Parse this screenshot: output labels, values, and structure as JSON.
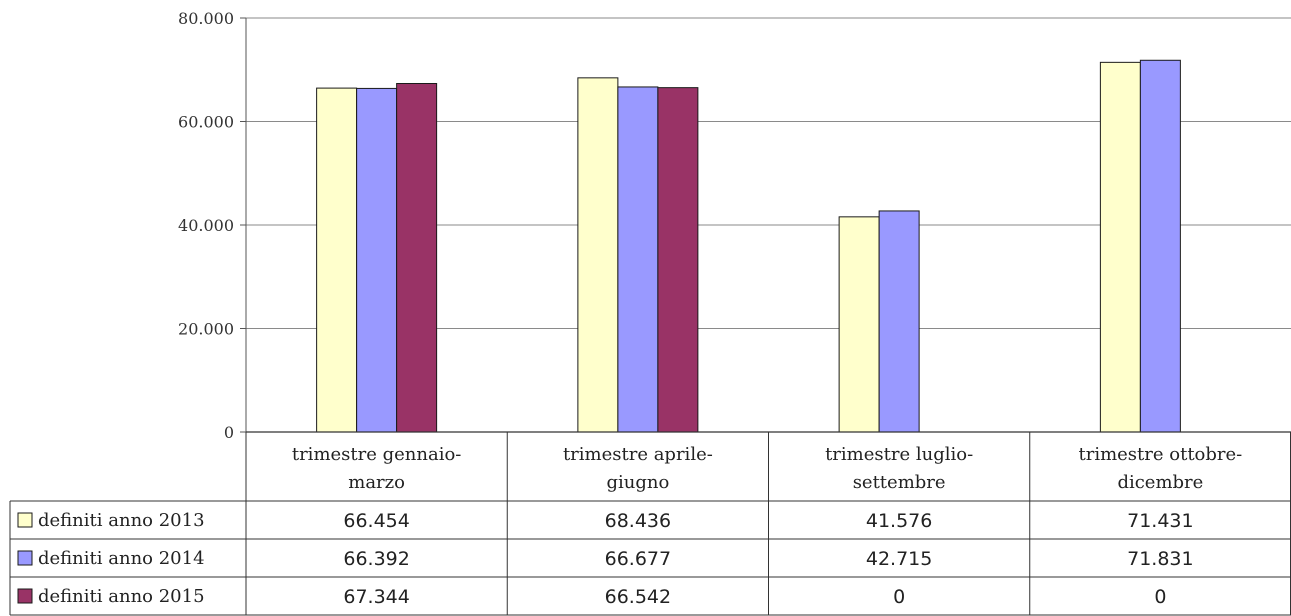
{
  "chart_data": {
    "type": "bar",
    "categories": [
      [
        "trimestre gennaio-",
        "marzo"
      ],
      [
        "trimestre aprile-",
        "giugno"
      ],
      [
        "trimestre luglio-",
        "settembre"
      ],
      [
        "trimestre ottobre-",
        "dicembre"
      ]
    ],
    "series": [
      {
        "name": "definiti anno 2013",
        "color": "#ffffcc",
        "values": [
          66454,
          68436,
          41576,
          71431
        ],
        "labels": [
          "66.454",
          "68.436",
          "41.576",
          "71.431"
        ]
      },
      {
        "name": "definiti anno 2014",
        "color": "#9999ff",
        "values": [
          66392,
          66677,
          42715,
          71831
        ],
        "labels": [
          "66.392",
          "66.677",
          "42.715",
          "71.831"
        ]
      },
      {
        "name": "definiti anno 2015",
        "color": "#993366",
        "values": [
          67344,
          66542,
          0,
          0
        ],
        "labels": [
          "67.344",
          "66.542",
          "0",
          "0"
        ]
      }
    ],
    "ylim": [
      0,
      80000
    ],
    "yticks": [
      0,
      20000,
      40000,
      60000,
      80000
    ],
    "ytick_labels": [
      "0",
      "20.000",
      "40.000",
      "60.000",
      "80.000"
    ],
    "grid": true,
    "legend": "data-table-left"
  }
}
